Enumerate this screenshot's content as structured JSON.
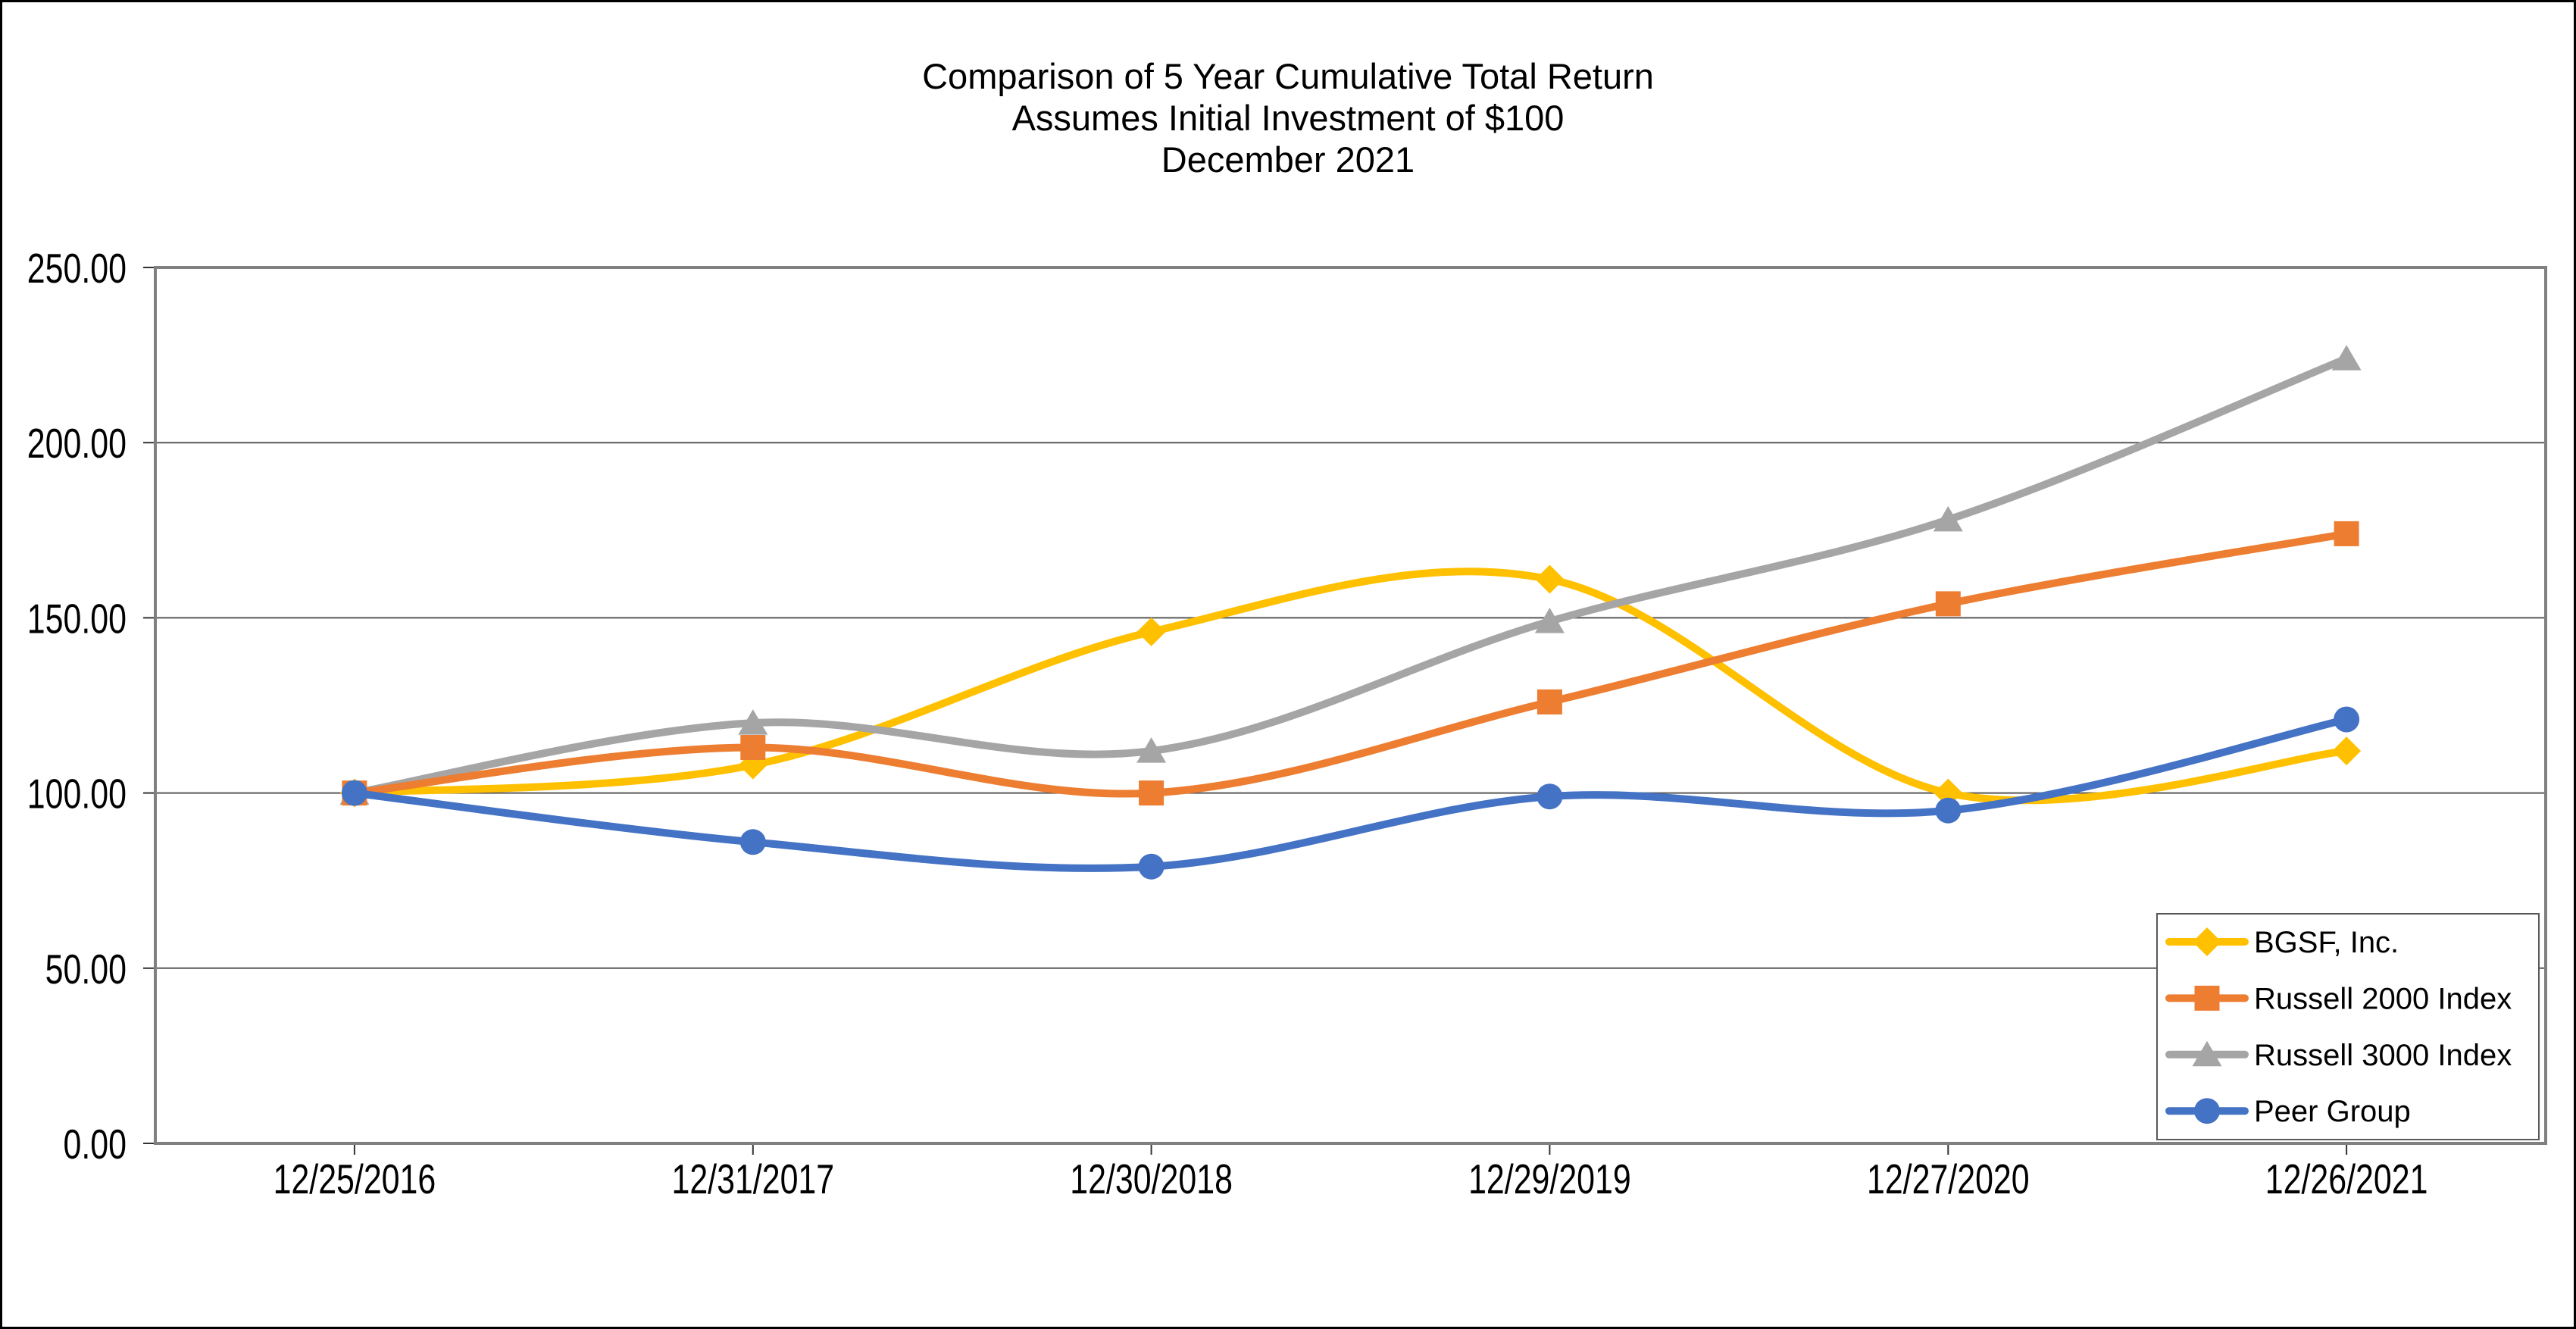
{
  "title": {
    "line1": "Comparison of 5 Year Cumulative Total Return",
    "line2": "Assumes Initial Investment of $100",
    "line3": "December 2021"
  },
  "chart_data": {
    "type": "line",
    "smooth": true,
    "title": "Comparison of 5 Year Cumulative Total Return — Assumes Initial Investment of $100 — December 2021",
    "xlabel": "",
    "ylabel": "",
    "categories": [
      "12/25/2016",
      "12/31/2017",
      "12/30/2018",
      "12/29/2019",
      "12/27/2020",
      "12/26/2021"
    ],
    "series": [
      {
        "name": "BGSF, Inc.",
        "marker": "diamond",
        "color": "#FFC000",
        "values": [
          100,
          108,
          146,
          161,
          100,
          112
        ]
      },
      {
        "name": "Russell 2000 Index",
        "marker": "square",
        "color": "#ED7D31",
        "values": [
          100,
          113,
          100,
          126,
          154,
          174
        ]
      },
      {
        "name": "Russell 3000 Index",
        "marker": "triangle",
        "color": "#A5A5A5",
        "values": [
          100,
          120,
          112,
          149,
          178,
          224
        ]
      },
      {
        "name": "Peer Group",
        "marker": "circle",
        "color": "#4472C4",
        "values": [
          100,
          86,
          79,
          99,
          95,
          121
        ]
      }
    ],
    "y_axis": {
      "min": 0,
      "max": 250,
      "step": 50,
      "tick_labels": [
        "0.00",
        "50.00",
        "100.00",
        "150.00",
        "200.00",
        "250.00"
      ]
    },
    "grid": true,
    "legend": {
      "position": "bottom-right",
      "border_color": "#595959",
      "background": "#ffffff"
    },
    "draw_order": [
      0,
      2,
      1,
      3
    ],
    "colors": {
      "gridline": "#595959",
      "axis_border": "#808080",
      "tick": "#333333",
      "text": "#000000",
      "background": "#ffffff"
    }
  }
}
